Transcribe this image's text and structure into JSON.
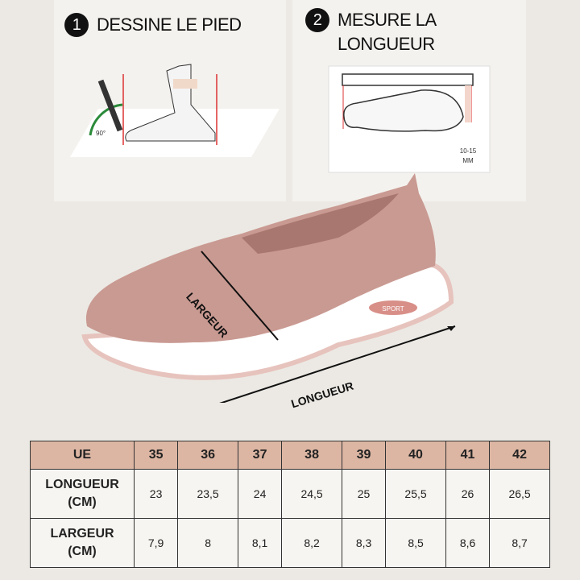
{
  "steps": [
    {
      "number": "1",
      "title": "DESSINE LE PIED",
      "angle": "90°"
    },
    {
      "number": "2",
      "title": "MESURE LA LONGUEUR",
      "note": "10-15",
      "note_unit": "MM"
    }
  ],
  "shoe": {
    "width_label": "LARGEUR",
    "length_label": "LONGUEUR",
    "brand": "SPORT"
  },
  "size_table": {
    "header": {
      "label": "UE",
      "sizes": [
        "35",
        "36",
        "37",
        "38",
        "39",
        "40",
        "41",
        "42"
      ]
    },
    "rows": [
      {
        "label": "LONGUEUR",
        "unit": "(CM)",
        "values": [
          "23",
          "23,5",
          "24",
          "24,5",
          "25",
          "25,5",
          "26",
          "26,5"
        ]
      },
      {
        "label": "LARGEUR",
        "unit": "(CM)",
        "values": [
          "7,9",
          "8",
          "8,1",
          "8,2",
          "8,3",
          "8,5",
          "8,6",
          "8,7"
        ]
      }
    ]
  },
  "colors": {
    "shoe": "#c99a92",
    "sole": "#ffffff",
    "header_bg": "#dcb6a3"
  }
}
